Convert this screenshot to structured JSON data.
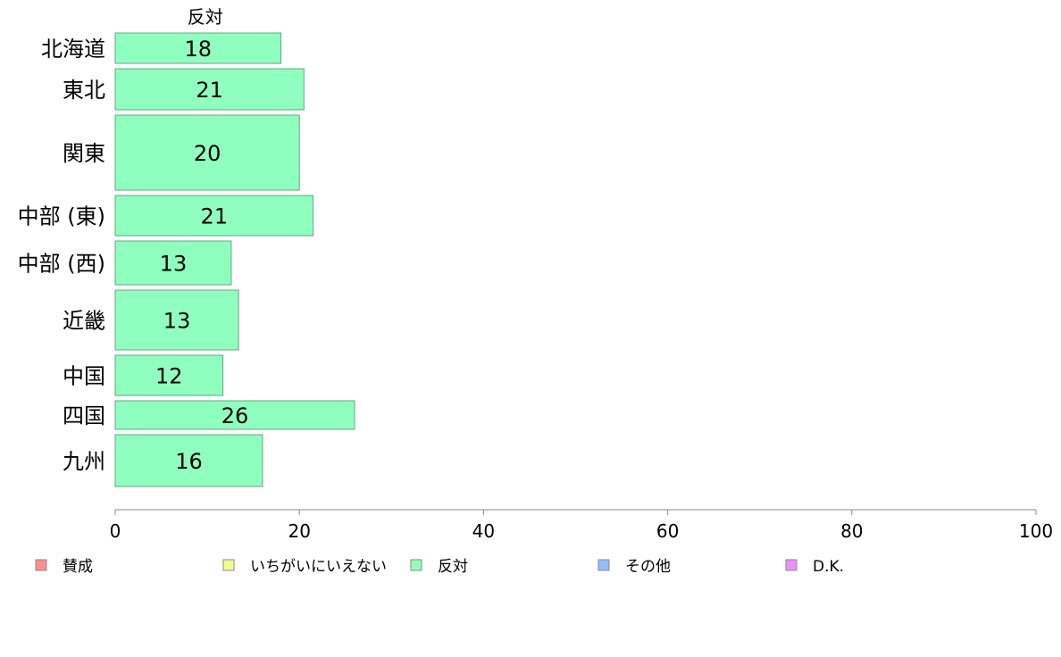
{
  "chart_data": {
    "type": "bar",
    "orientation": "horizontal",
    "column_title": "反対",
    "categories": [
      "北海道",
      "東北",
      "関東",
      "中部 (東)",
      "中部 (西)",
      "近畿",
      "中国",
      "四国",
      "九州"
    ],
    "values": [
      18,
      21,
      20,
      21,
      13,
      13,
      12,
      26,
      16
    ],
    "bar_widths": [
      18,
      20.5,
      20,
      21.5,
      12.6,
      13.4,
      11.7,
      26,
      16
    ],
    "relative_bar_thickness": [
      34,
      46,
      84,
      45,
      49,
      67,
      45,
      32,
      58
    ],
    "xlim": [
      0,
      100
    ],
    "xticks": [
      0,
      20,
      40,
      60,
      80,
      100
    ],
    "legend": {
      "placement": "bottom",
      "entries": [
        {
          "label": "賛成",
          "color": "#ff8f8f"
        },
        {
          "label": "いちがいにいえない",
          "color": "#efff8f"
        },
        {
          "label": "反対",
          "color": "#8fffbf"
        },
        {
          "label": "その他",
          "color": "#8fbfff"
        },
        {
          "label": "D.K.",
          "color": "#ef8fff"
        }
      ]
    },
    "bar_color": "#8fffbf",
    "bar_stroke": "#6aa382",
    "grid": false
  }
}
